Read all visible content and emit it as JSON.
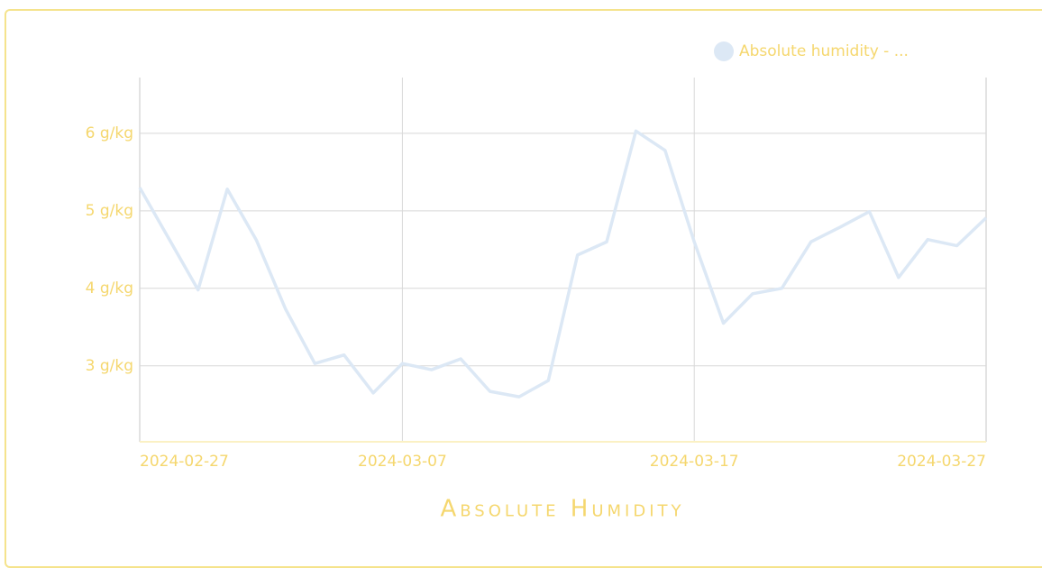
{
  "chart_data": {
    "type": "line",
    "title": "Absolute Humidity",
    "x": [
      "2024-02-27",
      "2024-02-28",
      "2024-02-29",
      "2024-03-01",
      "2024-03-02",
      "2024-03-03",
      "2024-03-04",
      "2024-03-05",
      "2024-03-06",
      "2024-03-07",
      "2024-03-08",
      "2024-03-09",
      "2024-03-10",
      "2024-03-11",
      "2024-03-12",
      "2024-03-13",
      "2024-03-14",
      "2024-03-15",
      "2024-03-16",
      "2024-03-17",
      "2024-03-18",
      "2024-03-19",
      "2024-03-20",
      "2024-03-21",
      "2024-03-22",
      "2024-03-23",
      "2024-03-24",
      "2024-03-25",
      "2024-03-26",
      "2024-03-27"
    ],
    "series": [
      {
        "name": "Absolute humidity - ...",
        "color": "#dce8f5",
        "values": [
          5.3,
          4.64,
          3.98,
          5.28,
          4.62,
          3.73,
          3.03,
          3.14,
          2.65,
          3.03,
          2.95,
          3.09,
          2.67,
          2.6,
          2.81,
          4.43,
          4.6,
          6.03,
          5.78,
          4.6,
          3.55,
          3.93,
          4.0,
          4.6,
          4.79,
          4.99,
          4.14,
          4.63,
          4.55,
          4.91
        ]
      }
    ],
    "xlim": [
      "2024-02-27",
      "2024-03-27"
    ],
    "xticks": [
      "2024-02-27",
      "2024-03-07",
      "2024-03-17",
      "2024-03-27"
    ],
    "ylim": [
      2.02,
      6.72
    ],
    "yticks": [
      {
        "value": 3,
        "label": "3 g/kg"
      },
      {
        "value": 4,
        "label": "4 g/kg"
      },
      {
        "value": 5,
        "label": "5 g/kg"
      },
      {
        "value": 6,
        "label": "6 g/kg"
      }
    ],
    "grid": true
  }
}
